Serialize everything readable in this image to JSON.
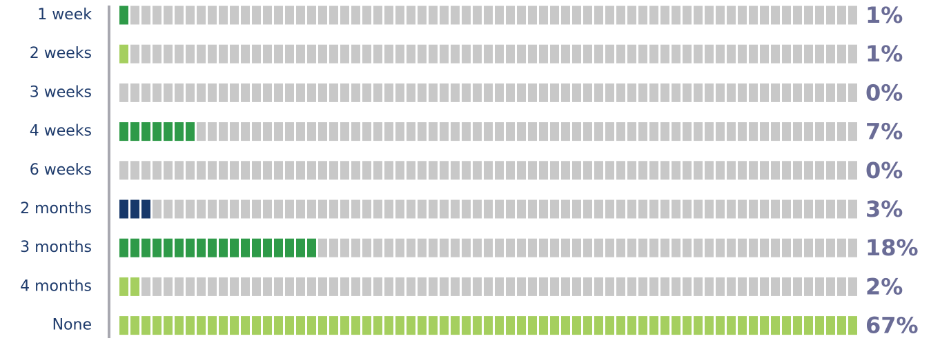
{
  "chart_data": {
    "type": "waffle-bar",
    "categories": [
      "1 week",
      "2 weeks",
      "3 weeks",
      "4 weeks",
      "6 weeks",
      "2 months",
      "3 months",
      "4 months",
      "None"
    ],
    "values": [
      1,
      1,
      0,
      7,
      0,
      3,
      18,
      2,
      67
    ],
    "value_labels": [
      "1%",
      "1%",
      "0%",
      "7%",
      "0%",
      "3%",
      "18%",
      "2%",
      "67%"
    ],
    "colors": [
      "#2e9a48",
      "#a5cf5f",
      "#2e9a48",
      "#2e9a48",
      "#2e9a48",
      "#17386a",
      "#2e9a48",
      "#a5cf5f",
      "#a5cf5f"
    ],
    "empty_color": "#c8c8c8",
    "xlim": [
      0,
      67
    ]
  }
}
